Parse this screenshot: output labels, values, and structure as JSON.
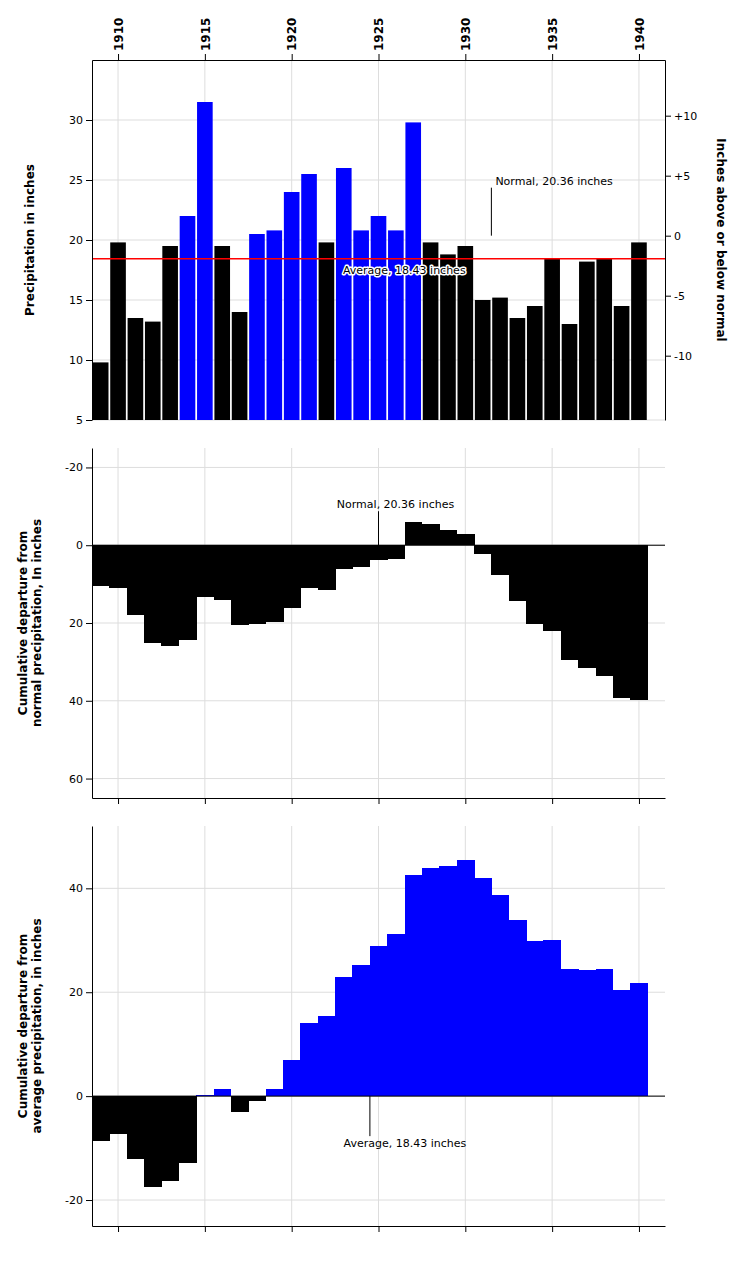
{
  "chart_data": [
    {
      "type": "bar",
      "x": [
        1909,
        1910,
        1911,
        1912,
        1913,
        1914,
        1915,
        1916,
        1917,
        1918,
        1919,
        1920,
        1921,
        1922,
        1923,
        1924,
        1925,
        1926,
        1927,
        1928,
        1929,
        1930,
        1931,
        1932,
        1933,
        1934,
        1935,
        1936,
        1937,
        1938,
        1939,
        1940
      ],
      "values": [
        9.8,
        19.8,
        13.5,
        13.2,
        19.5,
        22.0,
        31.5,
        19.5,
        14.0,
        20.5,
        20.8,
        24.0,
        25.5,
        19.8,
        26.0,
        20.8,
        22.0,
        20.8,
        29.8,
        19.8,
        18.8,
        19.5,
        15.0,
        15.2,
        13.5,
        14.5,
        18.5,
        13.0,
        18.2,
        18.5,
        14.5,
        19.8
      ],
      "colors": [
        "#000000",
        "#000000",
        "#000000",
        "#000000",
        "#000000",
        "#0000FF",
        "#0000FF",
        "#000000",
        "#000000",
        "#0000FF",
        "#0000FF",
        "#0000FF",
        "#0000FF",
        "#000000",
        "#0000FF",
        "#0000FF",
        "#0000FF",
        "#0000FF",
        "#0000FF",
        "#000000",
        "#000000",
        "#000000",
        "#000000",
        "#000000",
        "#000000",
        "#000000",
        "#000000",
        "#000000",
        "#000000",
        "#000000",
        "#000000",
        "#000000"
      ],
      "y_label": "Precipitation in inches",
      "y2_label": "Inches above or below normal",
      "xlim": [
        1908.5,
        1941.5
      ],
      "xticks": [
        1910,
        1915,
        1920,
        1925,
        1930,
        1935,
        1940
      ],
      "ylim": [
        5,
        35
      ],
      "yticks": [
        5,
        10,
        15,
        20,
        25,
        30
      ],
      "y2lim": [
        -15.36,
        14.64
      ],
      "y2ticks": [
        -10,
        -5,
        0,
        {
          "value": 5,
          "label": "+5"
        },
        {
          "value": 10,
          "label": "+10"
        }
      ],
      "grid": true,
      "reference_line": {
        "y": 18.43,
        "color": "#FF0000"
      },
      "annotations": [
        {
          "text": "Normal, 20.36 inches",
          "y": 20.36
        },
        {
          "text": "Average, 18.43 inches",
          "y": 18.43
        }
      ]
    },
    {
      "type": "area",
      "x": [
        1909,
        1910,
        1911,
        1912,
        1913,
        1914,
        1915,
        1916,
        1917,
        1918,
        1919,
        1920,
        1921,
        1922,
        1923,
        1924,
        1925,
        1926,
        1927,
        1928,
        1929,
        1930,
        1931,
        1932,
        1933,
        1934,
        1935,
        1936,
        1937,
        1938,
        1939,
        1940
      ],
      "values": [
        10.56,
        11.12,
        17.98,
        25.14,
        26.0,
        24.36,
        13.22,
        14.08,
        20.44,
        20.3,
        19.86,
        16.22,
        11.08,
        11.64,
        6.0,
        5.56,
        3.92,
        3.48,
        -5.96,
        -5.4,
        -3.84,
        -2.98,
        2.38,
        7.54,
        14.4,
        20.26,
        22.12,
        29.48,
        31.64,
        33.5,
        39.36,
        39.92
      ],
      "color": "#000000",
      "y_label": "Cumulative departure from\nnormal precipitation, In inches",
      "xlim": [
        1908.5,
        1941.5
      ],
      "xticks": [
        1910,
        1915,
        1920,
        1925,
        1930,
        1935,
        1940
      ],
      "ylim": [
        65,
        -25
      ],
      "yticks": [
        -20,
        0,
        20,
        40,
        60
      ],
      "grid": true,
      "tick_labels": "y",
      "annotations": [
        {
          "text": "Normal, 20.36 inches",
          "y": 0
        }
      ]
    },
    {
      "type": "area",
      "x": [
        1909,
        1910,
        1911,
        1912,
        1913,
        1914,
        1915,
        1916,
        1917,
        1918,
        1919,
        1920,
        1921,
        1922,
        1923,
        1924,
        1925,
        1926,
        1927,
        1928,
        1929,
        1930,
        1931,
        1932,
        1933,
        1934,
        1935,
        1936,
        1937,
        1938,
        1939,
        1940
      ],
      "values": [
        -8.63,
        -7.26,
        -12.19,
        -17.42,
        -16.35,
        -12.78,
        0.29,
        1.36,
        -3.07,
        -1.0,
        1.37,
        6.94,
        14.01,
        15.38,
        22.95,
        25.32,
        28.89,
        31.26,
        42.63,
        44.0,
        44.37,
        45.44,
        42.01,
        38.78,
        33.85,
        29.92,
        29.99,
        24.56,
        24.33,
        24.4,
        20.47,
        21.84
      ],
      "colors": [
        "#000000",
        "#000000",
        "#000000",
        "#000000",
        "#000000",
        "#000000",
        "#0000FF",
        "#0000FF",
        "#000000",
        "#000000",
        "#0000FF",
        "#0000FF",
        "#0000FF",
        "#0000FF",
        "#0000FF",
        "#0000FF",
        "#0000FF",
        "#0000FF",
        "#0000FF",
        "#0000FF",
        "#0000FF",
        "#0000FF",
        "#0000FF",
        "#0000FF",
        "#0000FF",
        "#0000FF",
        "#0000FF",
        "#0000FF",
        "#0000FF",
        "#0000FF",
        "#0000FF",
        "#0000FF"
      ],
      "y_label": "Cumulative departure from\naverage precipitation, in inches",
      "xlim": [
        1908.5,
        1941.5
      ],
      "xticks": [
        1910,
        1915,
        1920,
        1925,
        1930,
        1935,
        1940
      ],
      "ylim": [
        -25,
        52
      ],
      "yticks": [
        -20,
        0,
        20,
        40
      ],
      "grid": true,
      "tick_labels": "y",
      "annotations": [
        {
          "text": "Average, 18.43 inches",
          "y": 0
        }
      ]
    }
  ]
}
